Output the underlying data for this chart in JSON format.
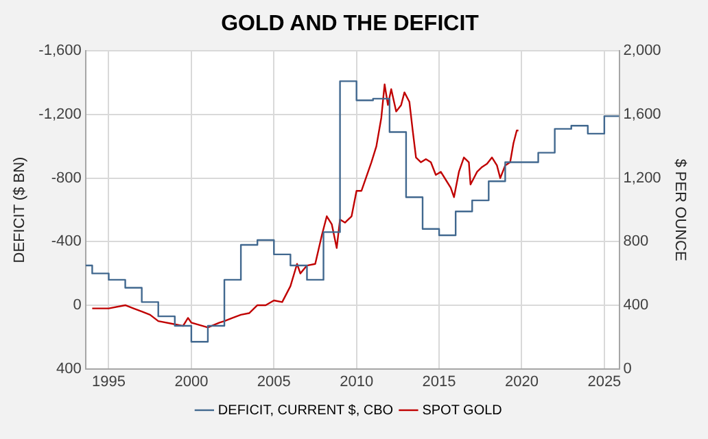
{
  "chart_data": {
    "type": "line",
    "title": "GOLD AND THE DEFICIT",
    "ylabel": "DEFICIT ($ BN)",
    "y2label": "$ PER OUNCE",
    "xlim": [
      1993.6,
      2025.9
    ],
    "xticks": [
      1995,
      2000,
      2005,
      2010,
      2015,
      2020,
      2025
    ],
    "ylim": [
      400,
      -1600
    ],
    "yticks": [
      {
        "value": -1600,
        "label": "-1,600"
      },
      {
        "value": -1200,
        "label": "-1,200"
      },
      {
        "value": -800,
        "label": "-800"
      },
      {
        "value": -400,
        "label": "-400"
      },
      0,
      400
    ],
    "y2lim": [
      0,
      2000
    ],
    "y2ticks": [
      0,
      400,
      800,
      {
        "value": 1200,
        "label": "1,200"
      },
      {
        "value": 1600,
        "label": "1,600"
      },
      {
        "value": 2000,
        "label": "2,000"
      }
    ],
    "grid": true,
    "legend": "bottom",
    "marker": "none",
    "line_style": "solid",
    "series": [
      {
        "name": "DEFICIT, CURRENT $, CBO",
        "type": "step",
        "color": "#41688f",
        "x": [
          1993.6,
          1994,
          1995,
          1996,
          1997,
          1998,
          1999,
          2000,
          2001,
          2002,
          2003,
          2004,
          2005,
          2006,
          2007,
          2008,
          2009,
          2010,
          2011,
          2012,
          2013,
          2014,
          2015,
          2016,
          2017,
          2018,
          2019,
          2021,
          2022,
          2023,
          2024,
          2025,
          2025.9
        ],
        "values": [
          -250,
          -200,
          -160,
          -110,
          -20,
          70,
          130,
          230,
          130,
          -160,
          -380,
          -410,
          -320,
          -250,
          -160,
          -460,
          -1410,
          -1290,
          -1300,
          -1090,
          -680,
          -480,
          -440,
          -590,
          -660,
          -780,
          -900,
          -960,
          -1110,
          -1130,
          -1080,
          -1190,
          -1190
        ]
      },
      {
        "name": "SPOT GOLD",
        "type": "line",
        "axis": "y2",
        "color": "#c00000",
        "x": [
          1994,
          1995,
          1996,
          1996.5,
          1997,
          1997.5,
          1998,
          1999,
          1999.5,
          1999.8,
          2000,
          2001,
          2001.7,
          2002,
          2002.5,
          2003,
          2003.5,
          2004,
          2004.5,
          2005,
          2005.5,
          2006,
          2006.4,
          2006.6,
          2007,
          2007.5,
          2007.9,
          2008.2,
          2008.5,
          2008.8,
          2009,
          2009.3,
          2009.7,
          2010,
          2010.3,
          2010.6,
          2010.9,
          2011.2,
          2011.5,
          2011.7,
          2011.9,
          2012.1,
          2012.4,
          2012.7,
          2012.9,
          2013.2,
          2013.4,
          2013.6,
          2013.9,
          2014.2,
          2014.5,
          2014.8,
          2015.1,
          2015.4,
          2015.7,
          2015.9,
          2016.2,
          2016.5,
          2016.8,
          2016.9,
          2017.3,
          2017.6,
          2017.9,
          2018.2,
          2018.5,
          2018.7,
          2019,
          2019.3,
          2019.5,
          2019.7,
          2019.8
        ],
        "values": [
          380,
          380,
          400,
          380,
          360,
          340,
          300,
          280,
          270,
          320,
          290,
          260,
          290,
          300,
          320,
          340,
          350,
          400,
          400,
          430,
          420,
          520,
          660,
          600,
          650,
          660,
          840,
          960,
          910,
          760,
          940,
          920,
          960,
          1120,
          1120,
          1210,
          1300,
          1400,
          1580,
          1790,
          1660,
          1760,
          1620,
          1660,
          1740,
          1680,
          1500,
          1330,
          1300,
          1320,
          1300,
          1220,
          1240,
          1190,
          1140,
          1080,
          1240,
          1330,
          1300,
          1160,
          1240,
          1270,
          1290,
          1330,
          1280,
          1200,
          1280,
          1300,
          1420,
          1500,
          1500
        ]
      }
    ]
  }
}
